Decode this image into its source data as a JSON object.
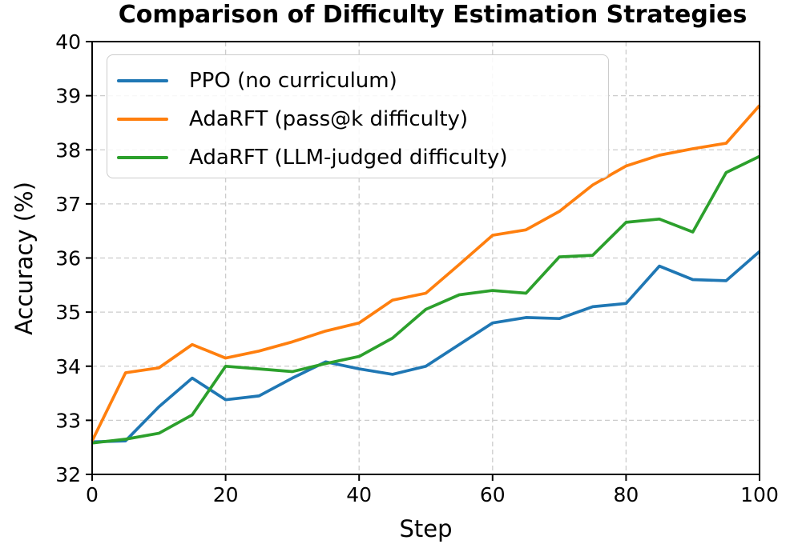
{
  "chart_data": {
    "type": "line",
    "title": "Comparison of Difficulty Estimation Strategies",
    "xlabel": "Step",
    "ylabel": "Accuracy (%)",
    "xlim": [
      0,
      100
    ],
    "ylim": [
      32,
      40
    ],
    "xticks": [
      0,
      20,
      40,
      60,
      80,
      100
    ],
    "yticks": [
      32,
      33,
      34,
      35,
      36,
      37,
      38,
      39,
      40
    ],
    "grid": true,
    "grid_style": "dashed",
    "grid_color": "#cccccc",
    "legend_position": "upper-left",
    "x": [
      0,
      5,
      10,
      15,
      20,
      25,
      30,
      35,
      40,
      45,
      50,
      55,
      60,
      65,
      70,
      75,
      80,
      85,
      90,
      95,
      100
    ],
    "series": [
      {
        "name": "PPO (no curriculum)",
        "color": "#1f77b4",
        "values": [
          32.6,
          32.62,
          33.25,
          33.78,
          33.38,
          33.45,
          33.78,
          34.08,
          33.95,
          33.85,
          34.0,
          34.4,
          34.8,
          34.9,
          34.88,
          35.1,
          35.16,
          35.85,
          35.6,
          35.58,
          36.12
        ]
      },
      {
        "name": "AdaRFT (pass@k difficulty)",
        "color": "#ff7f0e",
        "values": [
          32.62,
          33.88,
          33.97,
          34.4,
          34.15,
          34.28,
          34.45,
          34.65,
          34.8,
          35.22,
          35.35,
          35.88,
          36.42,
          36.52,
          36.86,
          37.35,
          37.7,
          37.9,
          38.02,
          38.12,
          38.82
        ]
      },
      {
        "name": "AdaRFT (LLM-judged difficulty)",
        "color": "#2ca02c",
        "values": [
          32.58,
          32.65,
          32.76,
          33.1,
          34.0,
          33.95,
          33.9,
          34.05,
          34.18,
          34.52,
          35.05,
          35.32,
          35.4,
          35.35,
          36.02,
          36.05,
          36.66,
          36.72,
          36.48,
          37.58,
          37.88
        ]
      }
    ]
  }
}
